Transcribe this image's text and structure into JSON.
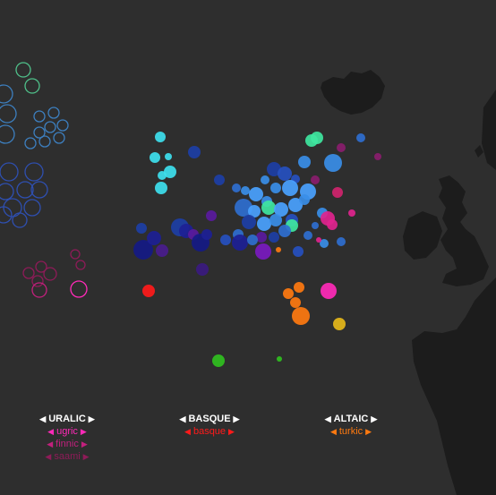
{
  "colors": {
    "background": "#2e2e2e",
    "land": "#1c1c1c",
    "ugric": "#ff2ab8",
    "finnic": "#c2207d",
    "saami": "#8e1b58",
    "basque": "#ff1a1a",
    "turkic": "#ff7a10"
  },
  "icons": {
    "prev": "◀",
    "next": "▶"
  },
  "legend": [
    {
      "family": "URALIC",
      "branches": [
        {
          "label": "ugric",
          "color": "#ff2ab8"
        },
        {
          "label": "finnic",
          "color": "#c2207d"
        },
        {
          "label": "saami",
          "color": "#8e1b58"
        }
      ]
    },
    {
      "family": "BASQUE",
      "branches": [
        {
          "label": "basque",
          "color": "#ff1a1a"
        }
      ]
    },
    {
      "family": "ALTAIC",
      "branches": [
        {
          "label": "turkic",
          "color": "#ff7a10"
        }
      ]
    }
  ]
}
